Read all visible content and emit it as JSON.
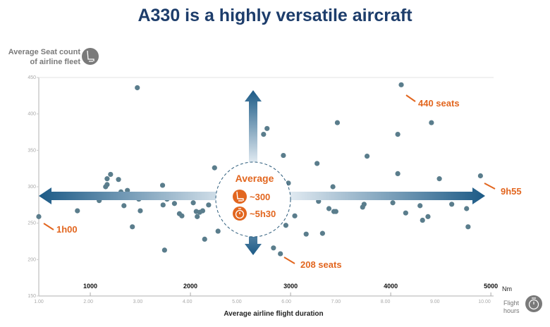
{
  "chart_data": {
    "type": "scatter",
    "title": "A330 is a highly versatile aircraft",
    "ylabel": "Average Seat count of airline fleet",
    "xlabel": "Average airline flight duration",
    "x_unit_label": "Flight hours",
    "secondary_x_unit": "Nm",
    "xlim": [
      1,
      10
    ],
    "ylim": [
      150,
      450
    ],
    "x_ticks": [
      "1.00",
      "2.00",
      "3.00",
      "4.00",
      "5.00",
      "6.00",
      "7.00",
      "8.00",
      "9.00",
      "10.00"
    ],
    "y_ticks": [
      "150",
      "200",
      "250",
      "300",
      "350",
      "400",
      "450"
    ],
    "secondary_x_ticks": [
      {
        "label": "1000",
        "nm": 1000
      },
      {
        "label": "2000",
        "nm": 2000
      },
      {
        "label": "3000",
        "nm": 3000
      },
      {
        "label": "4000",
        "nm": 4000
      },
      {
        "label": "5000",
        "nm": 5000
      }
    ],
    "grid": false,
    "point_color": "#5a7d8c",
    "accent_color": "#e2661f",
    "arrow_color": "#1c5a86",
    "points": [
      [
        1.0,
        259
      ],
      [
        1.78,
        267
      ],
      [
        2.22,
        281
      ],
      [
        2.35,
        300
      ],
      [
        2.38,
        303
      ],
      [
        2.38,
        311
      ],
      [
        2.45,
        317
      ],
      [
        2.61,
        310
      ],
      [
        2.66,
        293
      ],
      [
        2.72,
        274
      ],
      [
        2.79,
        295
      ],
      [
        2.89,
        245
      ],
      [
        2.99,
        436
      ],
      [
        3.02,
        283
      ],
      [
        3.05,
        267
      ],
      [
        3.5,
        302
      ],
      [
        3.51,
        275
      ],
      [
        3.54,
        213
      ],
      [
        3.59,
        283
      ],
      [
        3.74,
        277
      ],
      [
        3.84,
        263
      ],
      [
        3.89,
        260
      ],
      [
        4.12,
        278
      ],
      [
        4.18,
        266
      ],
      [
        4.2,
        259
      ],
      [
        4.25,
        265
      ],
      [
        4.31,
        267
      ],
      [
        4.35,
        228
      ],
      [
        4.43,
        275
      ],
      [
        4.55,
        326
      ],
      [
        4.62,
        239
      ],
      [
        4.91,
        272
      ],
      [
        5.54,
        372
      ],
      [
        5.61,
        380
      ],
      [
        5.74,
        216
      ],
      [
        5.88,
        208
      ],
      [
        5.94,
        343
      ],
      [
        5.99,
        247
      ],
      [
        6.04,
        305
      ],
      [
        6.17,
        260
      ],
      [
        6.4,
        235
      ],
      [
        6.62,
        332
      ],
      [
        6.65,
        280
      ],
      [
        6.73,
        236
      ],
      [
        6.86,
        270
      ],
      [
        6.94,
        300
      ],
      [
        6.96,
        266
      ],
      [
        7.0,
        266
      ],
      [
        7.03,
        388
      ],
      [
        7.54,
        272
      ],
      [
        7.57,
        276
      ],
      [
        7.63,
        342
      ],
      [
        8.15,
        278
      ],
      [
        8.25,
        372
      ],
      [
        8.25,
        318
      ],
      [
        8.32,
        440
      ],
      [
        8.41,
        264
      ],
      [
        8.7,
        274
      ],
      [
        8.75,
        254
      ],
      [
        8.86,
        259
      ],
      [
        8.93,
        388
      ],
      [
        9.09,
        311
      ],
      [
        9.34,
        276
      ],
      [
        9.64,
        270
      ],
      [
        9.67,
        245
      ],
      [
        9.92,
        315
      ]
    ],
    "annotations": {
      "min_duration": "1h00",
      "max_duration": "9h55",
      "max_seats": "440 seats",
      "min_seats": "208 seats"
    },
    "average": {
      "label": "Average",
      "seats": "~300",
      "duration": "~5h30"
    }
  },
  "icons": {
    "y_axis": "seat-icon",
    "x_axis": "stopwatch-icon",
    "avg_seats": "seat-icon",
    "avg_duration": "stopwatch-icon"
  }
}
